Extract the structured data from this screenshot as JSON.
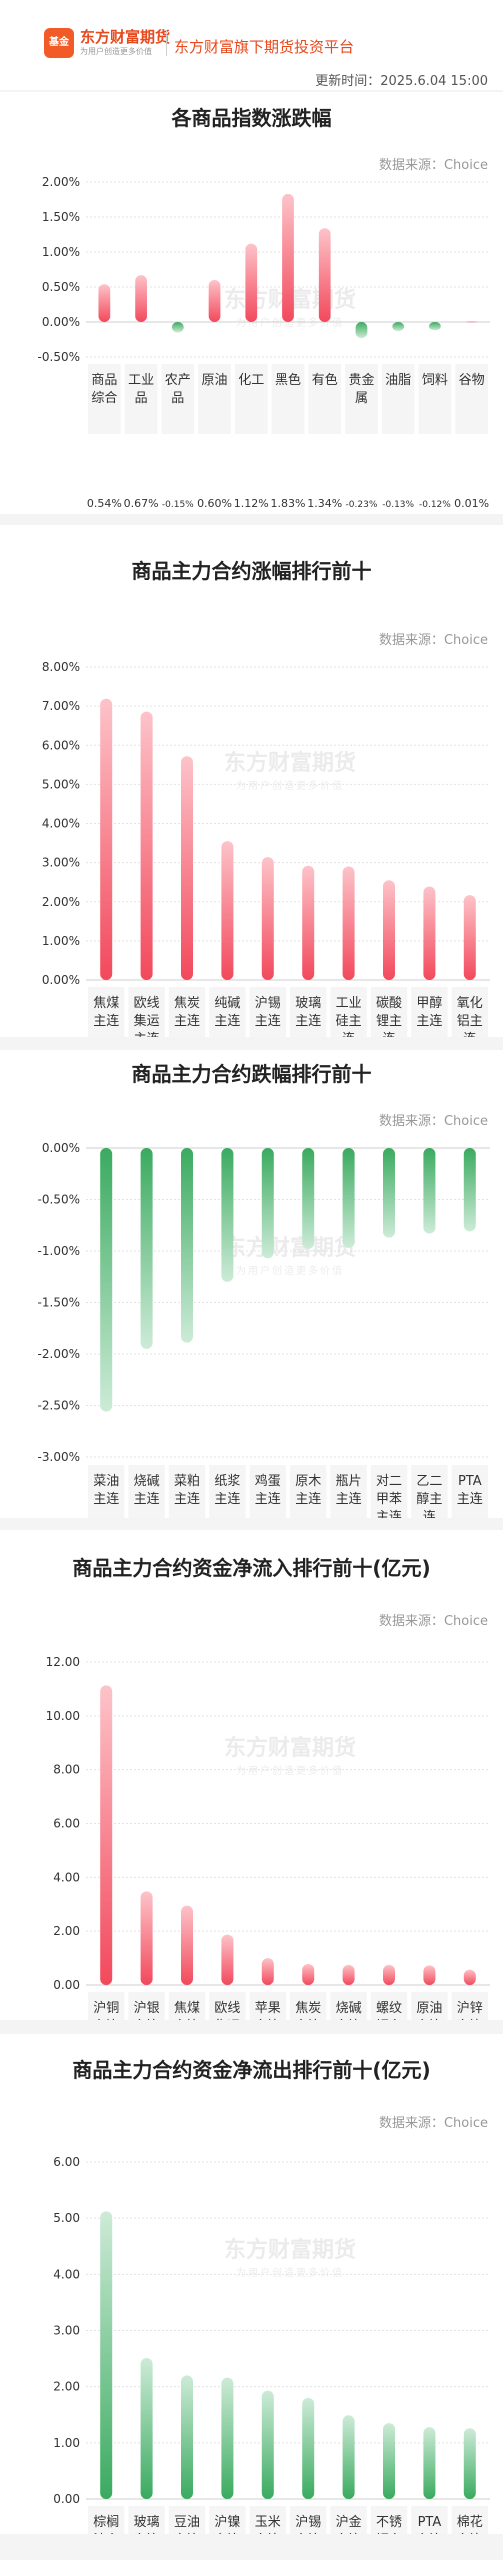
{
  "header": {
    "logo_icon": "eastmoney-logo-icon",
    "logo_text": "基金",
    "brand": "东方财富期货",
    "slogan": "为用户创造更多价值",
    "platform": "东方财富旗下期货投资平台",
    "update_time": "更新时间：2025.6.04 15:00"
  },
  "watermark": {
    "main": "东方财富期货",
    "sub": "为用户创造更多价值"
  },
  "colors": {
    "up": "#f2495c",
    "up_light": "#fdc3c9",
    "down": "#3aaa5f",
    "down_light": "#cdebd7"
  },
  "chart_data": [
    {
      "type": "bar",
      "title": "各商品指数涨跌幅",
      "source": "数据来源：Choice",
      "categories": [
        "商品综合",
        "工业品",
        "农产品",
        "原油",
        "化工",
        "黑色",
        "有色",
        "贵金属",
        "油脂",
        "饲料",
        "谷物"
      ],
      "label_lines": [
        [
          "商品",
          "综合"
        ],
        [
          "工业",
          "品"
        ],
        [
          "农产",
          "品"
        ],
        [
          "原油"
        ],
        [
          "化工"
        ],
        [
          "黑色"
        ],
        [
          "有色"
        ],
        [
          "贵金",
          "属"
        ],
        [
          "油脂"
        ],
        [
          "饲料"
        ],
        [
          "谷物"
        ]
      ],
      "values": [
        0.54,
        0.67,
        -0.15,
        0.6,
        1.12,
        1.83,
        1.34,
        -0.23,
        -0.13,
        -0.12,
        0.01
      ],
      "value_labels": [
        "0.54%",
        "0.67%",
        "-0.15%",
        "0.60%",
        "1.12%",
        "1.83%",
        "1.34%",
        "-0.23%",
        "-0.13%",
        "-0.12%",
        "0.01%"
      ],
      "yticks": [
        "2.00%",
        "1.50%",
        "1.00%",
        "0.50%",
        "0.00%",
        "-0.50%"
      ],
      "ylim": [
        -0.5,
        2.0
      ],
      "grid": true
    },
    {
      "type": "bar",
      "title": "商品主力合约涨幅排行前十",
      "source": "数据来源：Choice",
      "categories": [
        "焦煤主连",
        "欧线集运主连",
        "焦炭主连",
        "纯碱主连",
        "沪锡主连",
        "玻璃主连",
        "工业硅主连",
        "碳酸锂主连",
        "甲醇主连",
        "氧化铝主连"
      ],
      "label_lines": [
        [
          "焦煤",
          "主连"
        ],
        [
          "欧线",
          "集运",
          "主连"
        ],
        [
          "焦炭",
          "主连"
        ],
        [
          "纯碱",
          "主连"
        ],
        [
          "沪锡",
          "主连"
        ],
        [
          "玻璃",
          "主连"
        ],
        [
          "工业",
          "硅主",
          "连"
        ],
        [
          "碳酸",
          "锂主",
          "连"
        ],
        [
          "甲醇",
          "主连"
        ],
        [
          "氧化",
          "铝主",
          "连"
        ]
      ],
      "values": [
        7.19,
        6.86,
        5.72,
        3.55,
        3.14,
        2.92,
        2.9,
        2.55,
        2.39,
        2.17
      ],
      "value_labels": [
        "7.19%",
        "6.86%",
        "5.72%",
        "3.55%",
        "3.14%",
        "2.92%",
        "2.90%",
        "2.55%",
        "2.39%",
        "2.17%"
      ],
      "yticks": [
        "8.00%",
        "7.00%",
        "6.00%",
        "5.00%",
        "4.00%",
        "3.00%",
        "2.00%",
        "1.00%",
        "0.00%"
      ],
      "ylim": [
        0,
        8.0
      ],
      "grid": true
    },
    {
      "type": "bar",
      "title": "商品主力合约跌幅排行前十",
      "source": "数据来源：Choice",
      "categories": [
        "菜油主连",
        "烧碱主连",
        "菜粕主连",
        "纸浆主连",
        "鸡蛋主连",
        "原木主连",
        "瓶片主连",
        "对二甲苯主连",
        "乙二醇主连",
        "PTA主连"
      ],
      "label_lines": [
        [
          "菜油",
          "主连"
        ],
        [
          "烧碱",
          "主连"
        ],
        [
          "菜粕",
          "主连"
        ],
        [
          "纸浆",
          "主连"
        ],
        [
          "鸡蛋",
          "主连"
        ],
        [
          "原木",
          "主连"
        ],
        [
          "瓶片",
          "主连"
        ],
        [
          "对二",
          "甲苯",
          "主连"
        ],
        [
          "乙二",
          "醇主",
          "连"
        ],
        [
          "PTA",
          "主连"
        ]
      ],
      "values": [
        -2.56,
        -1.95,
        -1.89,
        -1.3,
        -1.07,
        -0.98,
        -0.97,
        -0.87,
        -0.83,
        -0.81
      ],
      "value_labels": [
        "-2.56%",
        "-1.95%",
        "-1.89%",
        "-1.30%",
        "-1.07%",
        "-0.98%",
        "-0.97%",
        "-0.87%",
        "-0.83%",
        "-0.81%"
      ],
      "yticks": [
        "0.00%",
        "-0.50%",
        "-1.00%",
        "-1.50%",
        "-2.00%",
        "-2.50%",
        "-3.00%"
      ],
      "ylim": [
        -3.0,
        0
      ],
      "grid": true
    },
    {
      "type": "bar",
      "title": "商品主力合约资金净流入排行前十(亿元)",
      "source": "数据来源：Choice",
      "categories": [
        "沪铜主连",
        "沪银主连",
        "焦煤主连",
        "欧线集运主连",
        "苹果主连",
        "焦炭主连",
        "烧碱主连",
        "螺纹钢主连",
        "原油主连",
        "沪锌主连"
      ],
      "label_lines": [
        [
          "沪铜",
          "主连"
        ],
        [
          "沪银",
          "主连"
        ],
        [
          "焦煤",
          "主连"
        ],
        [
          "欧线",
          "集运",
          "主连"
        ],
        [
          "苹果",
          "主连"
        ],
        [
          "焦炭",
          "主连"
        ],
        [
          "烧碱",
          "主连"
        ],
        [
          "螺纹",
          "钢主",
          "连"
        ],
        [
          "原油",
          "主连"
        ],
        [
          "沪锌",
          "主连"
        ]
      ],
      "values": [
        11.13,
        3.48,
        2.95,
        1.87,
        1.0,
        0.78,
        0.75,
        0.75,
        0.73,
        0.57
      ],
      "value_labels": [
        "11.13",
        "3.48",
        "2.95",
        "1.87",
        "1.00",
        "0.78",
        "0.75",
        "0.75",
        "0.73",
        "0.57"
      ],
      "yticks": [
        "12.00",
        "10.00",
        "8.00",
        "6.00",
        "4.00",
        "2.00",
        "0.00"
      ],
      "ylim": [
        0,
        12.0
      ],
      "grid": true
    },
    {
      "type": "bar",
      "title": "商品主力合约资金净流出排行前十(亿元)",
      "source": "数据来源：Choice",
      "categories": [
        "棕榈油主连",
        "玻璃主连",
        "豆油主连",
        "沪镍主连",
        "玉米主连",
        "沪锡主连",
        "沪金主连",
        "不锈钢主连",
        "PTA主连",
        "棉花主连"
      ],
      "label_lines": [
        [
          "棕榈",
          "油主",
          "连"
        ],
        [
          "玻璃",
          "主连"
        ],
        [
          "豆油",
          "主连"
        ],
        [
          "沪镍",
          "主连"
        ],
        [
          "玉米",
          "主连"
        ],
        [
          "沪锡",
          "主连"
        ],
        [
          "沪金",
          "主连"
        ],
        [
          "不锈",
          "钢主",
          "连"
        ],
        [
          "PTA",
          "主连"
        ],
        [
          "棉花",
          "主连"
        ]
      ],
      "values": [
        5.12,
        2.51,
        2.2,
        2.16,
        1.93,
        1.8,
        1.49,
        1.35,
        1.28,
        1.26
      ],
      "value_labels": [
        "5.12",
        "2.51",
        "2.2",
        "2.16",
        "1.93",
        "1.8",
        "1.49",
        "1.35",
        "1.28",
        "1.26"
      ],
      "yticks": [
        "6.00",
        "5.00",
        "4.00",
        "3.00",
        "2.00",
        "1.00",
        "0.00"
      ],
      "ylim": [
        0,
        6.0
      ],
      "grid": true
    }
  ]
}
